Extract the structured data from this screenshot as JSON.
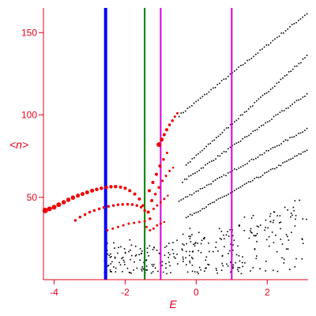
{
  "chart_data": {
    "type": "scatter",
    "xlabel": "E",
    "ylabel": "<n>",
    "xlim": [
      -4.3,
      3.15
    ],
    "ylim": [
      0,
      165
    ],
    "x_ticks": [
      {
        "value": -4,
        "label": "-4"
      },
      {
        "value": -2,
        "label": "-2"
      },
      {
        "value": 0,
        "label": "0"
      },
      {
        "value": 2,
        "label": "2"
      }
    ],
    "y_ticks": [
      {
        "value": 50,
        "label": "50"
      },
      {
        "value": 100,
        "label": "100"
      },
      {
        "value": 150,
        "label": "150"
      }
    ],
    "vertical_lines": [
      {
        "x": -2.55,
        "color": "#0000ff",
        "width": 4
      },
      {
        "x": -1.45,
        "color": "#008000",
        "width": 2
      },
      {
        "x": -1.0,
        "color": "#dd00dd",
        "width": 2
      },
      {
        "x": 1.0,
        "color": "#dd00dd",
        "width": 2
      }
    ],
    "colors": {
      "axis": "#e8001c",
      "highlight_points": "#ee0000",
      "background_points": "#000000"
    },
    "series": [
      {
        "color": "#ee0000",
        "points": [
          [
            -4.25,
            42,
            6
          ],
          [
            -4.13,
            43,
            5
          ],
          [
            -4.0,
            44,
            5
          ],
          [
            -3.87,
            45.5,
            5
          ],
          [
            -3.73,
            47,
            4.5
          ],
          [
            -3.6,
            48.5,
            4.5
          ],
          [
            -3.47,
            49.8,
            4.5
          ],
          [
            -3.33,
            51,
            4
          ],
          [
            -3.2,
            52,
            4
          ],
          [
            -3.07,
            53,
            4
          ],
          [
            -2.93,
            54,
            4
          ],
          [
            -2.8,
            54.8,
            3.5
          ],
          [
            -2.67,
            55.5,
            3.5
          ],
          [
            -2.53,
            56,
            3.5
          ],
          [
            -2.4,
            56.4,
            3.5
          ],
          [
            -2.27,
            56.5,
            3.5
          ],
          [
            -2.13,
            56.2,
            3
          ],
          [
            -2.0,
            55.5,
            3
          ],
          [
            -1.87,
            54,
            3
          ],
          [
            -1.73,
            52,
            3
          ],
          [
            -1.6,
            49,
            3
          ],
          [
            -1.5,
            45,
            2.5
          ],
          [
            -3.4,
            36,
            2.5
          ],
          [
            -3.27,
            38,
            2.5
          ],
          [
            -3.13,
            39.5,
            2.5
          ],
          [
            -3.0,
            41,
            2.5
          ],
          [
            -2.87,
            42,
            2.5
          ],
          [
            -2.73,
            43,
            2.5
          ],
          [
            -2.6,
            43.8,
            2.5
          ],
          [
            -2.47,
            44.5,
            2.5
          ],
          [
            -2.33,
            45,
            2.5
          ],
          [
            -2.2,
            45.5,
            2.5
          ],
          [
            -2.07,
            45.7,
            2.5
          ],
          [
            -1.93,
            45.8,
            2.5
          ],
          [
            -1.8,
            45.6,
            2.5
          ],
          [
            -1.67,
            45,
            2.5
          ],
          [
            -1.55,
            44,
            2.5
          ],
          [
            -1.45,
            42,
            2.5
          ],
          [
            -2.5,
            30,
            2
          ],
          [
            -2.35,
            31,
            2
          ],
          [
            -2.2,
            32,
            2
          ],
          [
            -2.05,
            33,
            2
          ],
          [
            -1.9,
            34,
            2
          ],
          [
            -1.75,
            34.5,
            2
          ],
          [
            -1.6,
            35,
            2
          ],
          [
            -1.45,
            35.5,
            2
          ],
          [
            -1.05,
            82,
            5
          ],
          [
            -0.97,
            85,
            4
          ],
          [
            -0.9,
            88,
            3
          ],
          [
            -0.83,
            91,
            3
          ],
          [
            -0.75,
            94,
            2.5
          ],
          [
            -0.67,
            96.5,
            2.5
          ],
          [
            -0.6,
            99,
            2
          ],
          [
            -0.53,
            101,
            2
          ],
          [
            -1.32,
            54,
            3
          ],
          [
            -1.22,
            59,
            3
          ],
          [
            -1.12,
            64,
            3
          ],
          [
            -1.02,
            69,
            3
          ],
          [
            -0.92,
            73,
            2.5
          ],
          [
            -0.82,
            77,
            2
          ],
          [
            -1.25,
            48,
            3
          ],
          [
            -1.15,
            52,
            2.5
          ],
          [
            -1.05,
            56,
            2.5
          ],
          [
            -0.95,
            60,
            2
          ],
          [
            -0.85,
            63,
            2
          ],
          [
            -0.75,
            66,
            2
          ],
          [
            -0.65,
            68,
            1.5
          ],
          [
            -1.35,
            41,
            3
          ],
          [
            -1.3,
            37,
            2.5
          ],
          [
            -1.2,
            43,
            2
          ],
          [
            -1.1,
            45,
            2
          ],
          [
            -1.0,
            47,
            2
          ],
          [
            -0.9,
            49,
            2
          ],
          [
            -0.8,
            51,
            1.5
          ],
          [
            -1.4,
            32,
            2
          ],
          [
            -1.3,
            30,
            2
          ],
          [
            -1.2,
            31,
            2
          ],
          [
            -1.1,
            33,
            2
          ],
          [
            -1.0,
            34,
            2
          ],
          [
            -0.9,
            35,
            1.5
          ]
        ]
      }
    ]
  }
}
